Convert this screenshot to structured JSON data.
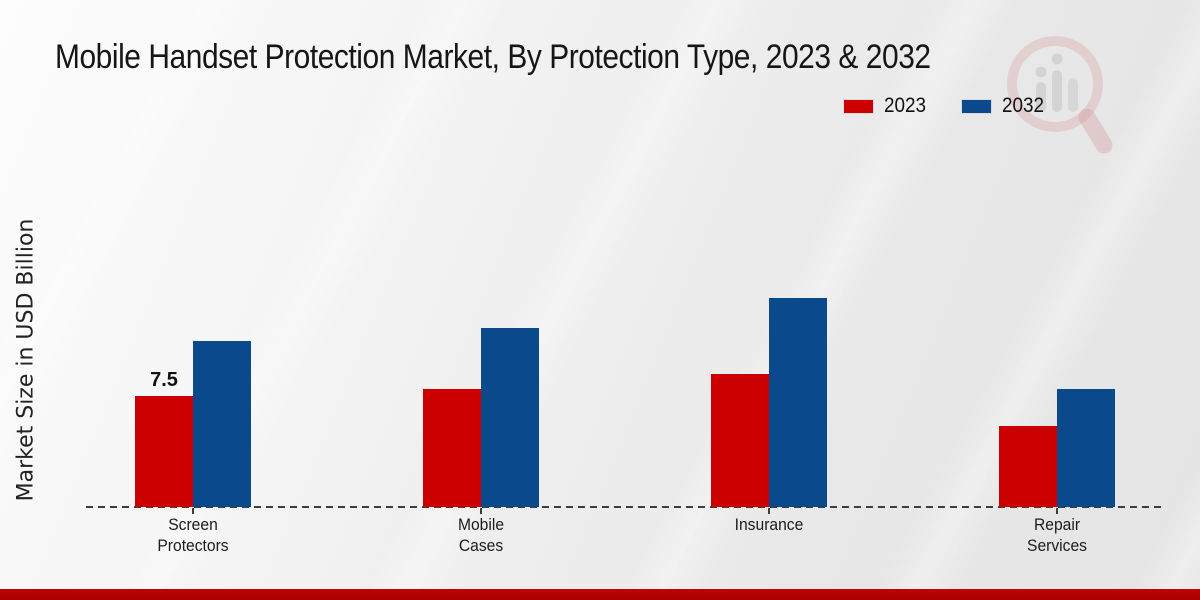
{
  "title": "Mobile Handset Protection Market, By Protection Type, 2023 & 2032",
  "y_axis_label": "Market Size in USD Billion",
  "legend": [
    {
      "label": "2023",
      "color": "#cc0000"
    },
    {
      "label": "2032",
      "color": "#0a4a8c"
    }
  ],
  "chart_data": {
    "type": "bar",
    "title": "Mobile Handset Protection Market, By Protection Type, 2023 & 2032",
    "xlabel": "",
    "ylabel": "Market Size in USD Billion",
    "categories": [
      "Screen Protectors",
      "Mobile Cases",
      "Insurance",
      "Repair Services"
    ],
    "category_label_lines": [
      [
        "Screen",
        "Protectors"
      ],
      [
        "Mobile",
        "Cases"
      ],
      [
        "Insurance"
      ],
      [
        "Repair",
        "Services"
      ]
    ],
    "series": [
      {
        "name": "2023",
        "color": "#cc0000",
        "values": [
          7.5,
          8.0,
          9.0,
          5.5
        ],
        "data_labels": [
          "7.5",
          "",
          "",
          ""
        ]
      },
      {
        "name": "2032",
        "color": "#0a4a8c",
        "values": [
          11.2,
          12.1,
          14.1,
          8.0
        ],
        "data_labels": [
          "",
          "",
          "",
          ""
        ]
      }
    ],
    "grid": false,
    "legend_position": "top-right",
    "baseline_style": "dashed"
  },
  "footer": {
    "accent_color": "#b00202"
  },
  "watermark": {
    "icon": "magnifier-bar-chart-logo"
  }
}
